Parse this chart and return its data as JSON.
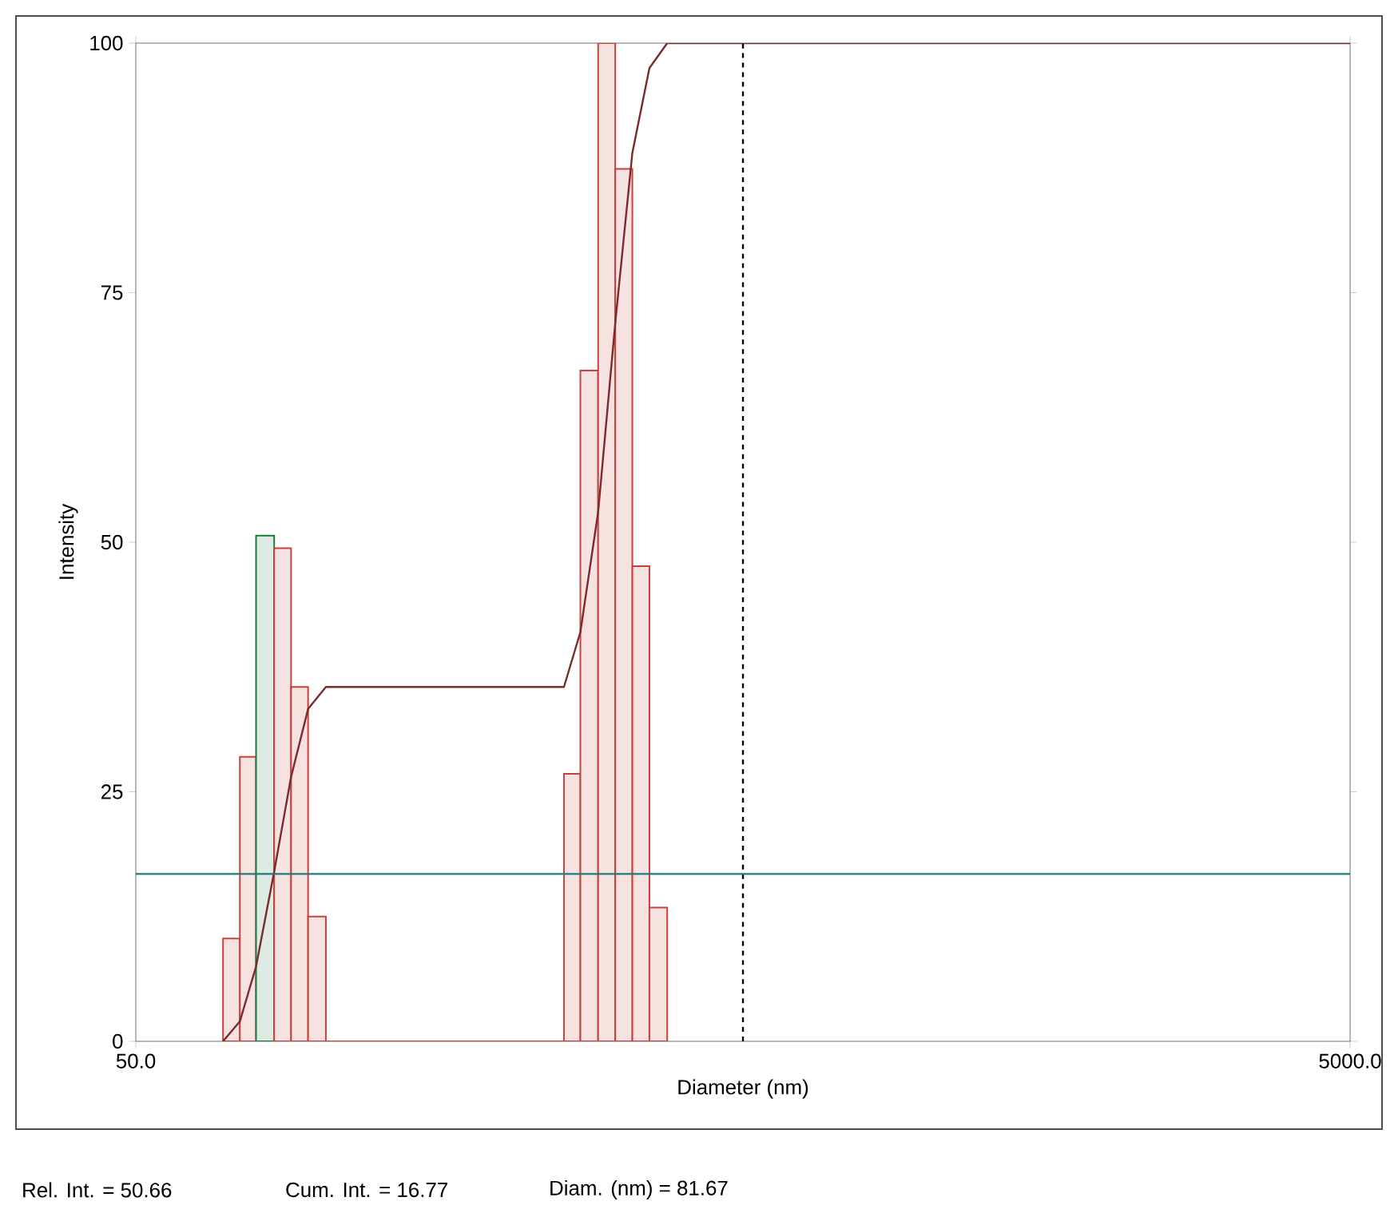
{
  "chart_data": {
    "type": "histogram",
    "xlabel": "Diameter (nm)",
    "ylabel": "Intensity",
    "bins": [
      69.6,
      74.2,
      78.9,
      84.5,
      90.1,
      96.1,
      102.8,
      253.6,
      269.9,
      288.7,
      308.1,
      328.7,
      350.7,
      375.2
    ],
    "values": [
      10.3,
      28.5,
      50.66,
      49.4,
      35.5,
      12.5,
      0,
      26.8,
      67.2,
      100,
      87.4,
      47.6,
      13.4
    ],
    "colors": [
      "#c8413b",
      "#c8413b",
      "#1e7a3c",
      "#c8413b",
      "#c8413b",
      "#c8413b",
      "#c8413b",
      "#c8413b",
      "#c8413b",
      "#c8413b",
      "#c8413b",
      "#c8413b",
      "#c8413b"
    ],
    "series": [
      {
        "type": "line",
        "color": "#7a2a2a",
        "x": [
          69.6,
          74.2,
          78.9,
          84.5,
          90.1,
          96.1,
          102.8,
          253.6,
          269.9,
          288.7,
          308.1,
          328.7,
          350.7,
          375.2,
          5000
        ],
        "values": [
          0,
          2,
          7.5,
          17,
          26.5,
          33.3,
          35.5,
          35.5,
          41,
          53,
          72,
          89,
          97.5,
          100,
          100
        ]
      }
    ],
    "log": "x",
    "xlim": [
      50,
      5000
    ],
    "xticks": [
      {
        "value": 50,
        "label": "50.0"
      },
      {
        "value": 5000,
        "label": "5000.0"
      }
    ],
    "ylim": [
      0,
      100
    ],
    "yticks": [
      0,
      25,
      50,
      75,
      100
    ],
    "ref_lines": [
      {
        "axis": "x",
        "value": 500,
        "color": "#000000",
        "line_style": "dashed"
      },
      {
        "axis": "y",
        "value": 16.77,
        "color": "#1f7a78",
        "line_style": "solid"
      }
    ],
    "annotations": [
      "Rel. Int. = 50.66",
      "Cum. Int. = 16.77",
      "Diam. (nm) = 81.67"
    ]
  }
}
